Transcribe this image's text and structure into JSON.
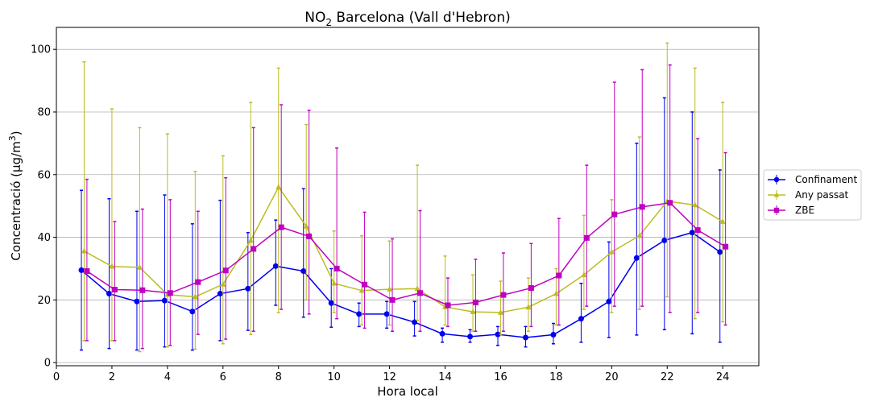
{
  "chart_data": {
    "type": "line",
    "title_main": "NO",
    "title_sub": "2",
    "title_rest": " Barcelona (Vall d'Hebron)",
    "xlabel": "Hora local",
    "ylabel_main": "Concentració (µg/m",
    "ylabel_sup": "3",
    "ylabel_end": ")",
    "xlim": [
      0,
      25.3
    ],
    "ylim": [
      -1,
      107
    ],
    "xticks": [
      0,
      2,
      4,
      6,
      8,
      10,
      12,
      14,
      16,
      18,
      20,
      22,
      24
    ],
    "yticks": [
      0,
      20,
      40,
      60,
      80,
      100
    ],
    "grid": "y",
    "legend_position": "right",
    "series": [
      {
        "name": "Confinament",
        "color": "#0000ee",
        "marker": "circle",
        "x_offset": -0.1,
        "x": [
          1,
          2,
          3,
          4,
          5,
          6,
          7,
          8,
          9,
          10,
          11,
          12,
          13,
          14,
          15,
          16,
          17,
          18,
          19,
          20,
          21,
          22,
          23,
          24
        ],
        "values": [
          29.5,
          22,
          19.5,
          19.8,
          16.3,
          22,
          23.6,
          30.8,
          29.2,
          19,
          15.5,
          15.5,
          12.9,
          9.2,
          8.3,
          9,
          8,
          8.9,
          14,
          19.5,
          33.4,
          39,
          41.5,
          35.3
        ],
        "err_low": [
          4,
          4.5,
          4,
          5,
          4,
          7,
          10.3,
          18.3,
          14.5,
          11.3,
          11.5,
          11,
          8.5,
          6.5,
          6.5,
          5.5,
          5,
          6,
          6.5,
          8,
          8.8,
          10.5,
          9.2,
          6.5
        ],
        "err_high": [
          55,
          52.3,
          48.3,
          53.5,
          44.3,
          51.8,
          41.5,
          45.5,
          55.5,
          30,
          19,
          19.5,
          19.5,
          11,
          10.5,
          11.5,
          11.5,
          12.5,
          25.3,
          38.5,
          70,
          84.5,
          80,
          61.5
        ]
      },
      {
        "name": "Any passat",
        "color": "#bcbd22",
        "marker": "triangle",
        "x_offset": 0,
        "x": [
          1,
          2,
          3,
          4,
          5,
          6,
          7,
          8,
          9,
          10,
          11,
          12,
          13,
          14,
          15,
          16,
          17,
          18,
          19,
          20,
          21,
          22,
          23,
          24
        ],
        "values": [
          35.6,
          30.7,
          30.4,
          21.7,
          21,
          25,
          39,
          56,
          43.5,
          25.3,
          23,
          23.4,
          23.6,
          17.8,
          16.2,
          16,
          17.7,
          22,
          28,
          35.3,
          40.5,
          51.5,
          50.3,
          45
        ],
        "err_low": [
          7,
          7,
          3.5,
          5,
          4.3,
          6,
          9,
          16,
          20,
          16,
          12,
          12,
          13.5,
          12,
          10,
          9,
          10,
          12,
          17,
          16,
          17,
          21,
          14,
          13
        ],
        "err_high": [
          96,
          81,
          75,
          73,
          61,
          66,
          83,
          94,
          76,
          42,
          40.5,
          38.8,
          63,
          34,
          28,
          26,
          27,
          30,
          47,
          52,
          72,
          102,
          94,
          83
        ]
      },
      {
        "name": "ZBE",
        "color": "#bf00bf",
        "marker": "square",
        "x_offset": 0.1,
        "x": [
          1,
          2,
          3,
          4,
          5,
          6,
          7,
          8,
          9,
          10,
          11,
          12,
          13,
          14,
          15,
          16,
          17,
          18,
          19,
          20,
          21,
          22,
          23,
          24
        ],
        "values": [
          29.2,
          23.3,
          23.1,
          22.2,
          25.7,
          29.4,
          36.3,
          43.2,
          40.3,
          30,
          24.9,
          20,
          22.2,
          18.3,
          19.2,
          21.6,
          23.8,
          27.8,
          39.8,
          47.3,
          49.7,
          51,
          42.3,
          37
        ],
        "err_low": [
          7,
          7,
          4.5,
          5.5,
          9,
          7.5,
          10,
          17,
          15.5,
          14,
          11,
          10,
          10,
          11.5,
          10,
          10,
          11.5,
          12,
          18,
          18,
          18,
          16,
          16,
          12
        ],
        "err_high": [
          58.5,
          45,
          49,
          52,
          48.3,
          59,
          75,
          82.3,
          80.5,
          68.5,
          48,
          39.5,
          48.5,
          27,
          33,
          35,
          38,
          46,
          63,
          89.5,
          93.5,
          95,
          71.5,
          67
        ]
      }
    ]
  }
}
